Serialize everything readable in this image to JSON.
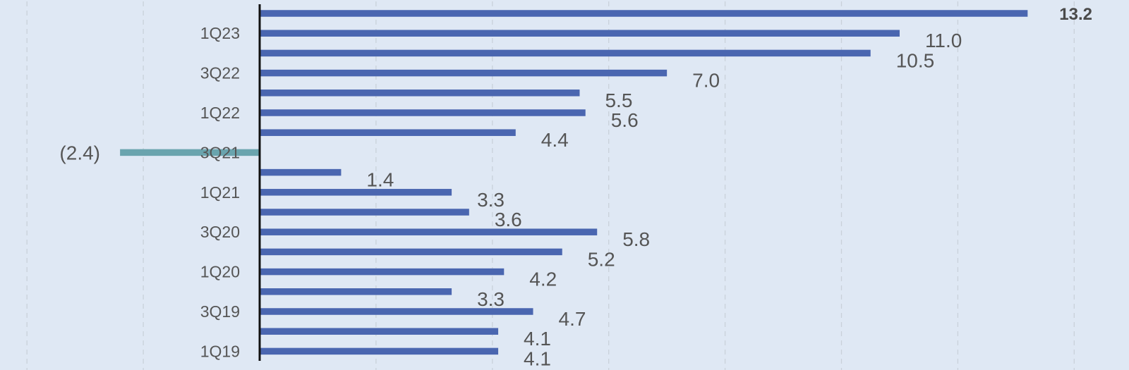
{
  "chart_data": {
    "type": "bar",
    "orientation": "horizontal",
    "categories": [
      "",
      "1Q23",
      "",
      "3Q22",
      "",
      "1Q22",
      "",
      "3Q21",
      "",
      "1Q21",
      "",
      "3Q20",
      "",
      "1Q20",
      "",
      "3Q19",
      "",
      "1Q19"
    ],
    "values": [
      13.2,
      11.0,
      10.5,
      7.0,
      5.5,
      5.6,
      4.4,
      -2.4,
      1.4,
      3.3,
      3.6,
      5.8,
      5.2,
      4.2,
      3.3,
      4.7,
      4.1,
      4.1
    ],
    "value_labels": [
      "13.2",
      "11.0",
      "10.5",
      "7.0",
      "5.5",
      "5.6",
      "4.4",
      "(2.4)",
      "1.4",
      "3.3",
      "3.6",
      "5.8",
      "5.2",
      "4.2",
      "3.3",
      "4.7",
      "4.1",
      "4.1"
    ],
    "bold_indices": [
      0
    ],
    "xlim": [
      -4,
      14
    ],
    "grid": true,
    "colors": {
      "positive": "#4a66b0",
      "negative": "#6aa4ae",
      "background": "#dfe8f4",
      "grid": "#c9d1da",
      "axis": "#111111",
      "label": "#555555"
    },
    "title": "",
    "xlabel": "",
    "ylabel": ""
  }
}
